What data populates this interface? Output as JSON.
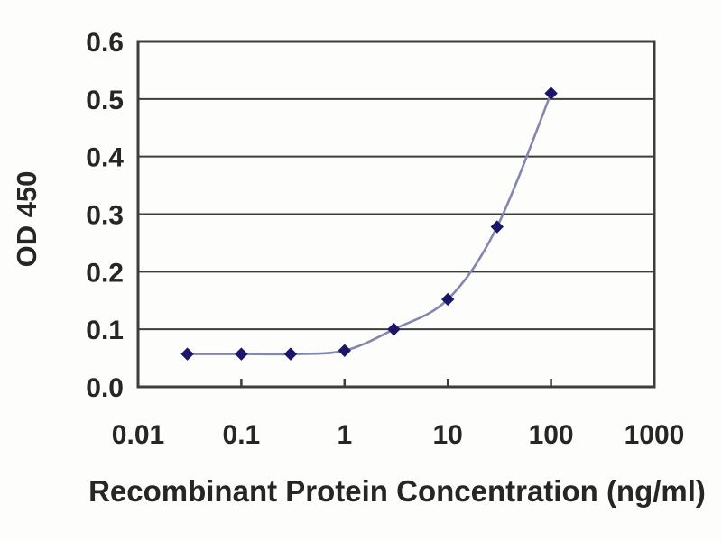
{
  "chart_data": {
    "type": "line",
    "title": "",
    "xlabel": "Recombinant Protein Concentration (ng/ml)",
    "ylabel": "OD 450",
    "x_scale": "log",
    "xlim": [
      0.01,
      1000
    ],
    "ylim": [
      0.0,
      0.6
    ],
    "x_tick_values": [
      0.01,
      0.1,
      1,
      10,
      100,
      1000
    ],
    "x_tick_labels": [
      "0.01",
      "0.1",
      "1",
      "10",
      "100",
      "1000"
    ],
    "y_tick_values": [
      0.0,
      0.1,
      0.2,
      0.3,
      0.4,
      0.5,
      0.6
    ],
    "y_tick_labels": [
      "0.0",
      "0.1",
      "0.2",
      "0.3",
      "0.4",
      "0.5",
      "0.6"
    ],
    "grid": "horizontal",
    "legend": null,
    "series": [
      {
        "name": "OD 450",
        "marker": "diamond",
        "x": [
          0.03,
          0.1,
          0.3,
          1,
          3,
          10,
          30,
          100
        ],
        "y": [
          0.057,
          0.057,
          0.057,
          0.063,
          0.1,
          0.152,
          0.278,
          0.51
        ]
      }
    ],
    "colors": {
      "line": "#8486ae",
      "marker": "#1c1668",
      "grid": "#3d3d3d",
      "axis": "#3d3d3d",
      "text": "#262626",
      "background": "#fdfdfc"
    }
  }
}
